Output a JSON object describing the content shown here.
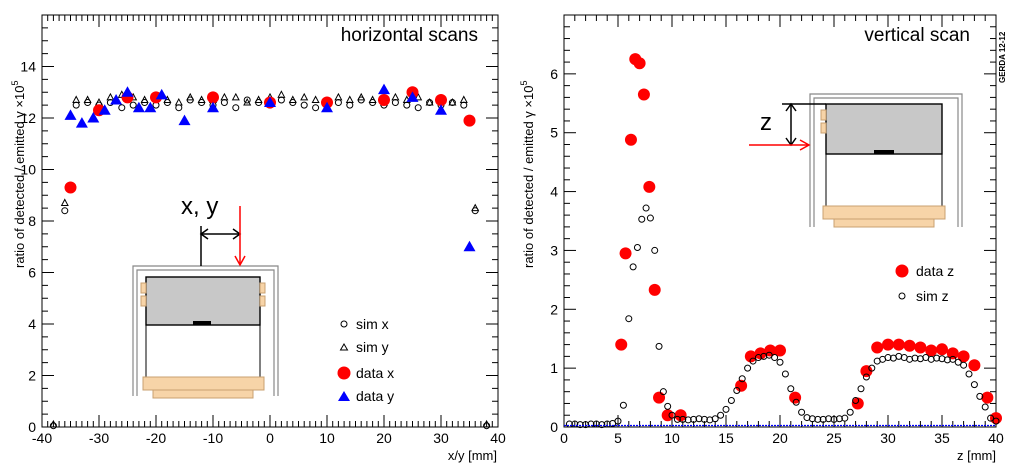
{
  "chart_data": [
    {
      "type": "scatter",
      "title": "horizontal scans",
      "xlabel": "x/y [mm]",
      "ylabel": "ratio of detected / emitted γ ×10",
      "ylabel_exponent": "5",
      "xlim": [
        -40,
        40
      ],
      "ylim": [
        0,
        16
      ],
      "xticks": [
        -40,
        -30,
        -20,
        -10,
        0,
        10,
        20,
        30,
        40
      ],
      "yticks": [
        0,
        2,
        4,
        6,
        8,
        10,
        12,
        14
      ],
      "inset_label": "x, y",
      "series": [
        {
          "name": "sim x",
          "marker": "open-circle",
          "color": "#000000",
          "x": [
            -38,
            -36,
            -34,
            -32,
            -30,
            -28,
            -26,
            -24,
            -22,
            -20,
            -18,
            -16,
            -14,
            -12,
            -10,
            -8,
            -6,
            -4,
            -2,
            0,
            2,
            4,
            6,
            8,
            10,
            12,
            14,
            16,
            18,
            20,
            22,
            24,
            26,
            28,
            30,
            32,
            34,
            36,
            38
          ],
          "y": [
            0.05,
            8.4,
            12.5,
            12.6,
            12.5,
            12.6,
            12.4,
            12.5,
            12.6,
            12.5,
            12.6,
            12.4,
            12.7,
            12.6,
            12.5,
            12.6,
            12.4,
            12.7,
            12.6,
            12.5,
            12.7,
            12.6,
            12.5,
            12.4,
            12.5,
            12.6,
            12.5,
            12.7,
            12.6,
            12.5,
            12.6,
            12.5,
            12.4,
            12.6,
            12.5,
            12.6,
            12.5,
            8.4,
            0.05
          ]
        },
        {
          "name": "sim y",
          "marker": "open-triangle",
          "color": "#000000",
          "x": [
            -38,
            -36,
            -34,
            -32,
            -30,
            -28,
            -26,
            -24,
            -22,
            -20,
            -18,
            -16,
            -14,
            -12,
            -10,
            -8,
            -6,
            -4,
            -2,
            0,
            2,
            4,
            6,
            8,
            10,
            12,
            14,
            16,
            18,
            20,
            22,
            24,
            26,
            28,
            30,
            32,
            34,
            36,
            38
          ],
          "y": [
            0.1,
            8.7,
            12.7,
            12.7,
            12.6,
            12.8,
            12.9,
            12.8,
            12.7,
            12.8,
            12.7,
            12.6,
            12.8,
            12.7,
            12.7,
            12.8,
            12.8,
            12.6,
            12.7,
            12.8,
            12.9,
            12.7,
            12.8,
            12.7,
            12.6,
            12.8,
            12.7,
            12.8,
            12.7,
            12.6,
            12.8,
            12.7,
            12.8,
            12.6,
            12.7,
            12.6,
            12.7,
            8.5,
            0.1
          ]
        },
        {
          "name": "data x",
          "marker": "filled-circle",
          "color": "#ff0000",
          "x": [
            -35,
            -30,
            -25,
            -20,
            -10,
            0,
            10,
            20,
            25,
            30,
            35
          ],
          "y": [
            9.3,
            12.3,
            12.8,
            12.8,
            12.8,
            12.6,
            12.6,
            12.7,
            13.0,
            12.7,
            11.9
          ]
        },
        {
          "name": "data y",
          "marker": "filled-triangle",
          "color": "#0000ff",
          "x": [
            -35,
            -33,
            -31,
            -29,
            -27,
            -25,
            -23,
            -21,
            -19,
            -15,
            -10,
            0,
            10,
            20,
            25,
            30,
            35
          ],
          "y": [
            12.1,
            11.8,
            12.0,
            12.3,
            12.7,
            13.0,
            12.4,
            12.4,
            12.9,
            11.9,
            12.4,
            12.6,
            12.4,
            13.1,
            12.8,
            12.3,
            7.0
          ]
        }
      ]
    },
    {
      "type": "scatter",
      "title": "vertical scan",
      "xlabel": "z [mm]",
      "ylabel": "ratio of detected / emitted γ ×10",
      "ylabel_exponent": "5",
      "xlim": [
        0,
        40
      ],
      "ylim": [
        0,
        7
      ],
      "xticks": [
        0,
        5,
        10,
        15,
        20,
        25,
        30,
        35,
        40
      ],
      "yticks": [
        0,
        1,
        2,
        3,
        4,
        5,
        6
      ],
      "inset_label": "z",
      "watermark": "GERDA 12-12",
      "series": [
        {
          "name": "data z",
          "marker": "filled-circle",
          "color": "#ff0000",
          "x": [
            5.3,
            5.7,
            6.2,
            6.6,
            7.0,
            7.4,
            7.9,
            8.4,
            8.8,
            9.6,
            10.8,
            16.4,
            17.3,
            18.2,
            19.1,
            20.0,
            21.4,
            27.2,
            28.0,
            29.0,
            30.0,
            31.0,
            32.0,
            33.0,
            34.0,
            35.0,
            36.0,
            37.0,
            38.0,
            39.2,
            40.0
          ],
          "y": [
            1.4,
            2.95,
            4.88,
            6.25,
            6.18,
            5.65,
            4.08,
            2.33,
            0.5,
            0.2,
            0.2,
            0.7,
            1.2,
            1.25,
            1.3,
            1.3,
            0.5,
            0.4,
            0.95,
            1.35,
            1.4,
            1.4,
            1.38,
            1.35,
            1.3,
            1.32,
            1.25,
            1.2,
            1.05,
            0.5,
            0.15
          ]
        },
        {
          "name": "sim z",
          "marker": "open-circle",
          "color": "#000000",
          "x": [
            0.5,
            1.0,
            1.5,
            2.0,
            2.5,
            3.0,
            3.5,
            4.0,
            4.5,
            5.0,
            5.5,
            6.0,
            6.4,
            6.8,
            7.2,
            7.6,
            8.0,
            8.4,
            8.8,
            9.2,
            9.6,
            10.0,
            10.5,
            11.0,
            11.5,
            12.0,
            12.5,
            13.0,
            13.5,
            14.0,
            14.5,
            15.0,
            15.5,
            16.0,
            16.5,
            17.0,
            17.5,
            18.0,
            18.5,
            19.0,
            19.5,
            20.0,
            20.5,
            21.0,
            21.5,
            22.0,
            22.5,
            23.0,
            23.5,
            24.0,
            24.5,
            25.0,
            25.5,
            26.0,
            26.5,
            27.0,
            27.5,
            28.0,
            28.5,
            29.0,
            29.5,
            30.0,
            30.5,
            31.0,
            31.5,
            32.0,
            32.5,
            33.0,
            33.5,
            34.0,
            34.5,
            35.0,
            35.5,
            36.0,
            36.5,
            37.0,
            37.5,
            38.0,
            38.5,
            39.0,
            39.5,
            40.0
          ],
          "y": [
            0.05,
            0.05,
            0.04,
            0.04,
            0.05,
            0.05,
            0.04,
            0.05,
            0.06,
            0.1,
            0.37,
            1.84,
            2.72,
            3.05,
            3.53,
            3.72,
            3.55,
            3.0,
            1.37,
            0.6,
            0.35,
            0.2,
            0.13,
            0.13,
            0.12,
            0.13,
            0.14,
            0.13,
            0.12,
            0.14,
            0.2,
            0.3,
            0.45,
            0.62,
            0.82,
            1.0,
            1.12,
            1.18,
            1.2,
            1.22,
            1.18,
            1.1,
            0.9,
            0.65,
            0.42,
            0.25,
            0.16,
            0.14,
            0.13,
            0.13,
            0.14,
            0.13,
            0.14,
            0.15,
            0.25,
            0.45,
            0.65,
            0.85,
            1.0,
            1.12,
            1.15,
            1.18,
            1.17,
            1.2,
            1.18,
            1.15,
            1.17,
            1.16,
            1.18,
            1.15,
            1.17,
            1.16,
            1.14,
            1.15,
            1.1,
            1.05,
            0.9,
            0.72,
            0.52,
            0.34,
            0.15,
            0.1
          ]
        }
      ]
    }
  ]
}
